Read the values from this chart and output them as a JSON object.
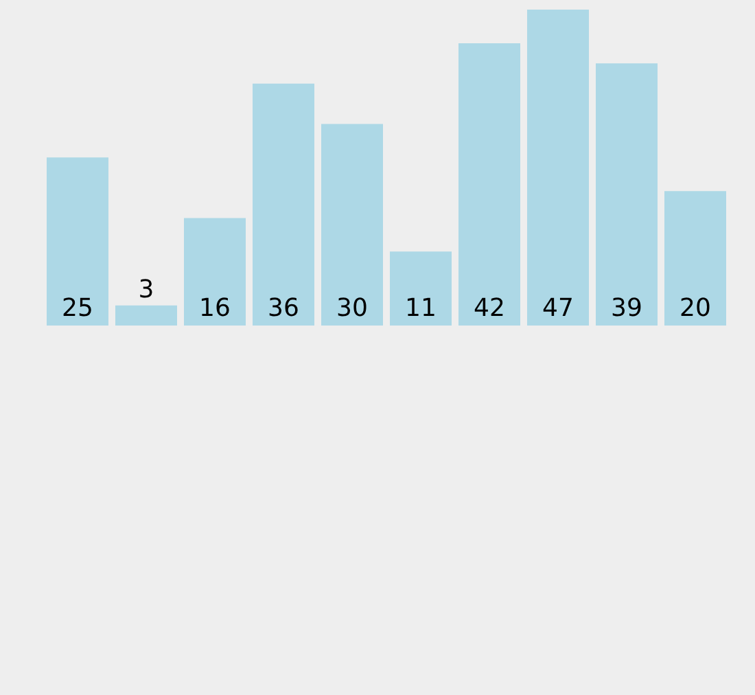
{
  "chart_data": {
    "type": "bar",
    "categories": [
      null,
      null,
      null,
      null,
      null,
      null,
      null,
      null,
      null,
      null
    ],
    "values": [
      25,
      3,
      16,
      36,
      30,
      11,
      42,
      47,
      39,
      20
    ],
    "color": "#add8e6",
    "data_labels": true
  }
}
